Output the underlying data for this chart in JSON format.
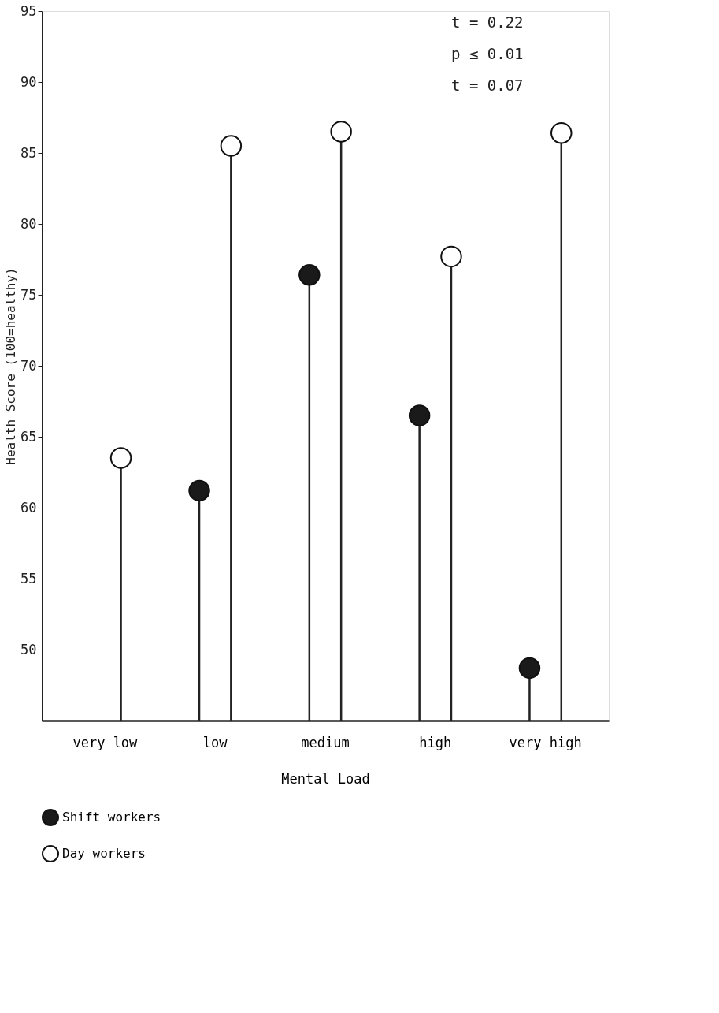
{
  "chart_data": {
    "type": "lollipop",
    "xlabel": "Mental Load",
    "ylabel": "Health Score (100=healthy)",
    "categories": [
      "very low",
      "low",
      "medium",
      "high",
      "very high"
    ],
    "series": [
      {
        "name": "Shift workers",
        "color": "#1a1a1a",
        "values": [
          null,
          61.2,
          76.4,
          66.5,
          48.7
        ]
      },
      {
        "name": "Day workers",
        "color": "#ffffff",
        "values": [
          63.5,
          85.5,
          86.5,
          77.7,
          86.4
        ]
      }
    ],
    "ylim": [
      45,
      95
    ],
    "yticks": [
      50,
      55,
      60,
      65,
      70,
      75,
      80,
      85,
      90,
      95
    ],
    "annotations": [
      "t = 0.22",
      "p ≤ 0.01",
      "t = 0.07"
    ],
    "legend": "bottom left",
    "grid": false,
    "marker": "circle"
  }
}
